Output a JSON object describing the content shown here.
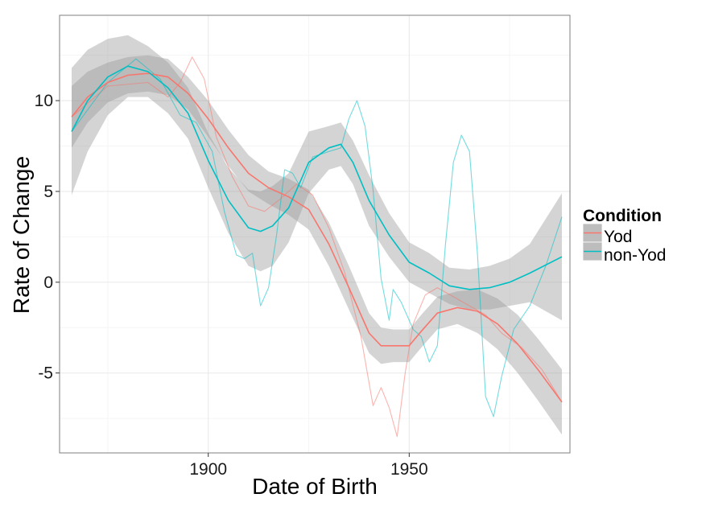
{
  "chart_data": {
    "type": "line",
    "title": "",
    "xlabel": "Date of Birth",
    "ylabel": "Rate of Change",
    "xlim": [
      1863,
      1990
    ],
    "ylim": [
      -9.4,
      14.7
    ],
    "x_ticks": [
      1900,
      1950
    ],
    "x_tick_labels": [
      "1900",
      "1950"
    ],
    "y_ticks": [
      -5,
      0,
      5,
      10
    ],
    "y_tick_labels": [
      "-5",
      "0",
      "5",
      "10"
    ],
    "x_minor_ticks": [
      1875,
      1925,
      1975
    ],
    "y_minor_ticks": [
      -7.5,
      -2.5,
      2.5,
      7.5,
      12.5
    ],
    "grid": true,
    "theme": "bw",
    "legend": {
      "title": "Condition",
      "position": "right",
      "entries": [
        "Yod",
        "non-Yod"
      ]
    },
    "series": [
      {
        "name": "Yod",
        "color": "#F8766D",
        "smooth": {
          "x": [
            1866,
            1870,
            1875,
            1880,
            1885,
            1890,
            1895,
            1900,
            1905,
            1910,
            1915,
            1920,
            1925,
            1930,
            1935,
            1940,
            1943,
            1946,
            1950,
            1953,
            1957,
            1962,
            1967,
            1972,
            1977,
            1982,
            1988
          ],
          "y": [
            9.1,
            10.2,
            11.0,
            11.4,
            11.5,
            11.3,
            10.4,
            9.0,
            7.4,
            6.0,
            5.2,
            4.7,
            4.0,
            2.1,
            -0.3,
            -2.8,
            -3.5,
            -3.5,
            -3.5,
            -2.7,
            -1.7,
            -1.4,
            -1.6,
            -2.3,
            -3.4,
            -4.8,
            -6.6
          ],
          "lower": [
            7.4,
            8.8,
            9.9,
            10.4,
            10.5,
            10.3,
            9.5,
            8.0,
            6.4,
            5.0,
            4.3,
            3.7,
            2.9,
            0.9,
            -1.5,
            -3.9,
            -4.5,
            -4.4,
            -4.4,
            -3.6,
            -2.6,
            -2.3,
            -2.8,
            -3.7,
            -5.0,
            -6.5,
            -8.4
          ],
          "upper": [
            10.8,
            11.6,
            12.1,
            12.4,
            12.5,
            12.3,
            11.3,
            10.0,
            8.4,
            7.0,
            6.1,
            5.7,
            5.1,
            3.3,
            0.9,
            -1.7,
            -2.5,
            -2.6,
            -2.6,
            -1.8,
            -0.8,
            -0.5,
            -0.4,
            -0.9,
            -1.8,
            -3.1,
            -4.8
          ]
        },
        "raw": {
          "x": [
            1866,
            1875,
            1885,
            1890,
            1893,
            1896,
            1899,
            1902,
            1906,
            1910,
            1914,
            1918,
            1922,
            1926,
            1930,
            1934,
            1938,
            1941,
            1943,
            1945,
            1947,
            1949,
            1951,
            1954,
            1957,
            1961,
            1965,
            1969,
            1973,
            1978,
            1983,
            1988
          ],
          "y": [
            9.1,
            10.8,
            11.0,
            10.2,
            11.0,
            12.4,
            11.2,
            8.0,
            5.8,
            4.2,
            3.9,
            4.6,
            5.4,
            4.8,
            3.0,
            0.5,
            -3.0,
            -6.8,
            -5.8,
            -6.9,
            -8.5,
            -5.0,
            -2.3,
            -0.7,
            -0.3,
            -0.8,
            -1.3,
            -1.8,
            -2.8,
            -3.6,
            -4.8,
            -6.6
          ]
        }
      },
      {
        "name": "non-Yod",
        "color": "#00BFC4",
        "smooth": {
          "x": [
            1866,
            1870,
            1875,
            1880,
            1885,
            1890,
            1895,
            1900,
            1905,
            1910,
            1913,
            1916,
            1920,
            1925,
            1930,
            1933,
            1936,
            1940,
            1945,
            1950,
            1955,
            1960,
            1965,
            1970,
            1975,
            1980,
            1988
          ],
          "y": [
            8.3,
            10.0,
            11.3,
            11.9,
            11.6,
            10.7,
            9.3,
            6.7,
            4.5,
            3.0,
            2.8,
            3.1,
            4.1,
            6.6,
            7.4,
            7.6,
            6.6,
            4.5,
            2.6,
            1.1,
            0.5,
            -0.2,
            -0.4,
            -0.3,
            0.0,
            0.5,
            1.4
          ],
          "lower": [
            4.8,
            7.2,
            9.2,
            10.2,
            10.2,
            9.3,
            7.9,
            5.2,
            2.7,
            0.9,
            0.6,
            0.9,
            2.2,
            4.9,
            6.2,
            6.4,
            5.4,
            3.1,
            1.4,
            0.0,
            -0.6,
            -1.2,
            -1.5,
            -1.5,
            -1.3,
            -1.1,
            -2.1
          ],
          "upper": [
            11.8,
            12.8,
            13.4,
            13.6,
            13.0,
            12.1,
            10.7,
            8.2,
            6.3,
            5.1,
            5.0,
            5.3,
            6.0,
            8.3,
            8.6,
            8.8,
            7.8,
            5.9,
            3.8,
            2.2,
            1.6,
            0.8,
            0.7,
            0.9,
            1.3,
            2.1,
            4.9
          ]
        },
        "raw": {
          "x": [
            1866,
            1875,
            1882,
            1888,
            1893,
            1897,
            1901,
            1904,
            1907,
            1909,
            1911,
            1913,
            1915,
            1917,
            1919,
            1921,
            1923,
            1926,
            1930,
            1933,
            1935,
            1937,
            1939,
            1941,
            1943,
            1945,
            1946,
            1948,
            1951,
            1953,
            1955,
            1957,
            1959,
            1961,
            1963,
            1965,
            1967,
            1969,
            1971,
            1973,
            1976,
            1980,
            1984,
            1988
          ],
          "y": [
            8.3,
            11.0,
            12.3,
            11.2,
            9.2,
            8.8,
            7.2,
            3.9,
            1.5,
            1.3,
            1.6,
            -1.3,
            -0.3,
            2.6,
            6.2,
            6.0,
            5.2,
            6.9,
            7.2,
            7.4,
            9.0,
            10.0,
            8.6,
            5.1,
            0.2,
            -2.1,
            -0.4,
            -1.1,
            -2.6,
            -3.0,
            -4.4,
            -3.5,
            2.0,
            6.6,
            8.1,
            7.2,
            1.5,
            -6.3,
            -7.4,
            -5.2,
            -2.6,
            -1.3,
            0.9,
            3.6
          ]
        }
      }
    ]
  }
}
